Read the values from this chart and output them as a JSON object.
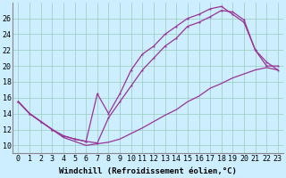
{
  "xlabel": "Windchill (Refroidissement éolien,°C)",
  "bg_color": "#cceeff",
  "line_color": "#993399",
  "xlim": [
    -0.5,
    23.5
  ],
  "ylim": [
    9,
    28
  ],
  "xticks": [
    0,
    1,
    2,
    3,
    4,
    5,
    6,
    7,
    8,
    9,
    10,
    11,
    12,
    13,
    14,
    15,
    16,
    17,
    18,
    19,
    20,
    21,
    22,
    23
  ],
  "yticks": [
    10,
    12,
    14,
    16,
    18,
    20,
    22,
    24,
    26
  ],
  "grid_color": "#99ccbb",
  "line1_x": [
    0,
    1,
    2,
    3,
    4,
    5,
    6,
    7,
    8,
    9,
    10,
    11,
    12,
    13,
    14,
    15,
    16,
    17,
    18,
    19,
    20,
    21,
    22,
    23
  ],
  "line1_y": [
    15.5,
    14.0,
    13.0,
    12.0,
    11.0,
    10.5,
    10.0,
    10.2,
    10.4,
    10.8,
    11.5,
    12.2,
    13.0,
    13.8,
    14.5,
    15.5,
    16.2,
    17.2,
    17.8,
    18.5,
    19.0,
    19.5,
    19.8,
    19.5
  ],
  "line2_x": [
    0,
    1,
    2,
    3,
    4,
    5,
    6,
    7,
    8,
    9,
    10,
    11,
    12,
    13,
    14,
    15,
    16,
    17,
    18,
    19,
    20,
    21,
    22,
    23
  ],
  "line2_y": [
    15.5,
    14.0,
    13.0,
    12.0,
    11.2,
    10.8,
    10.5,
    16.5,
    14.0,
    16.5,
    19.5,
    21.5,
    22.5,
    24.0,
    25.0,
    26.0,
    26.5,
    27.2,
    27.5,
    26.5,
    25.5,
    22.0,
    20.5,
    19.5
  ],
  "line3_x": [
    0,
    1,
    2,
    3,
    4,
    5,
    6,
    7,
    8,
    9,
    10,
    11,
    12,
    13,
    14,
    15,
    16,
    17,
    18,
    19,
    20,
    21,
    22,
    23
  ],
  "line3_y": [
    15.5,
    14.0,
    13.0,
    12.0,
    11.2,
    10.8,
    10.5,
    10.3,
    13.5,
    15.5,
    17.5,
    19.5,
    21.0,
    22.5,
    23.5,
    25.0,
    25.5,
    26.2,
    27.0,
    26.8,
    25.8,
    22.0,
    20.0,
    20.0
  ],
  "xlabel_fontsize": 6.5,
  "tick_fontsize": 6.0
}
